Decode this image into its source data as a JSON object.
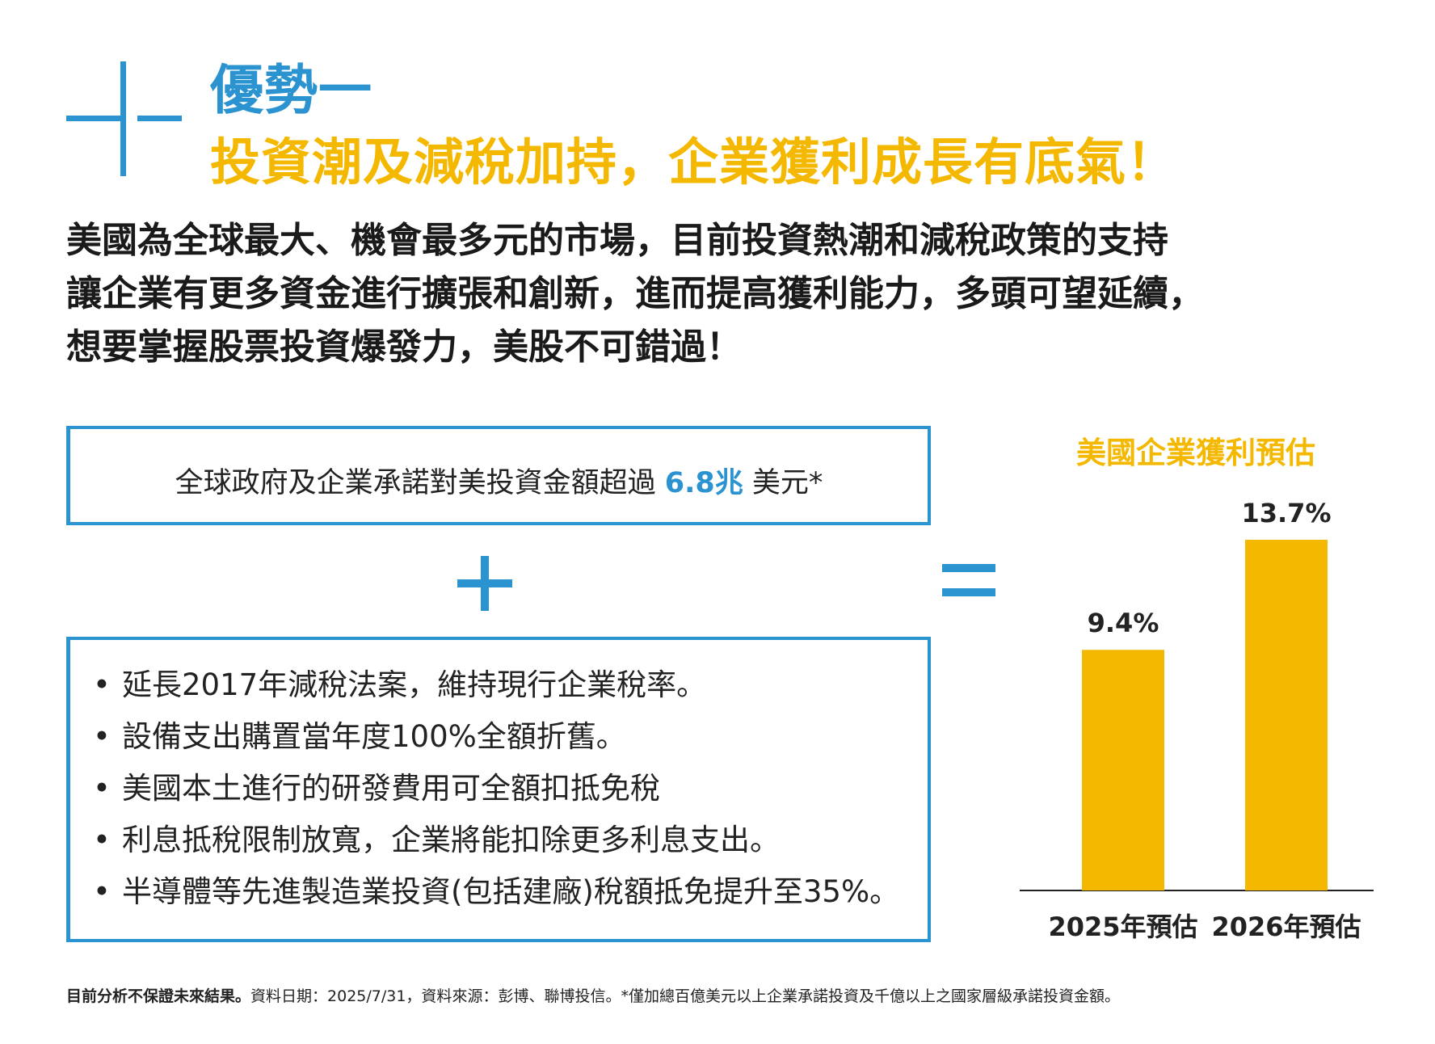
{
  "colors": {
    "blue": "#2a93d0",
    "yellow": "#f5b800",
    "text": "#222222"
  },
  "header": {
    "title_line1": "優勢一",
    "title_line2": "投資潮及減稅加持，企業獲利成長有底氣！"
  },
  "intro": {
    "lines": [
      "美國為全球最大、機會最多元的市場，目前投資熱潮和減稅政策的支持",
      "讓企業有更多資金進行擴張和創新，進而提高獲利能力，多頭可望延續，",
      "想要掌握股票投資爆發力，美股不可錯過！"
    ]
  },
  "investment_box": {
    "prefix": "全球政府及企業承諾對美投資金額超過 ",
    "amount": "6.8兆",
    "suffix": " 美元*"
  },
  "policy_box": {
    "bullet": "•",
    "items": [
      "延長2017年減稅法案，維持現行企業稅率。",
      "設備支出購置當年度100%全額折舊。",
      "美國本土進行的研發費用可全額扣抵免稅",
      "利息抵稅限制放寬，企業將能扣除更多利息支出。",
      "半導體等先進製造業投資(包括建廠)稅額抵免提升至35%。"
    ]
  },
  "chart_data": {
    "type": "bar",
    "title": "美國企業獲利預估",
    "categories": [
      "2025年預估",
      "2026年預估"
    ],
    "values": [
      9.4,
      13.7
    ],
    "value_labels": [
      "9.4%",
      "13.7%"
    ],
    "ylim": [
      0,
      13.7
    ],
    "grid": false,
    "legend": "none",
    "bar_color": "#f5b800"
  },
  "footnote": {
    "bold": "目前分析不保證未來結果。",
    "text": "資料日期：2025/7/31，資料來源：彭博、聯博投信。*僅加總百億美元以上企業承諾投資及千億以上之國家層級承諾投資金額。"
  }
}
